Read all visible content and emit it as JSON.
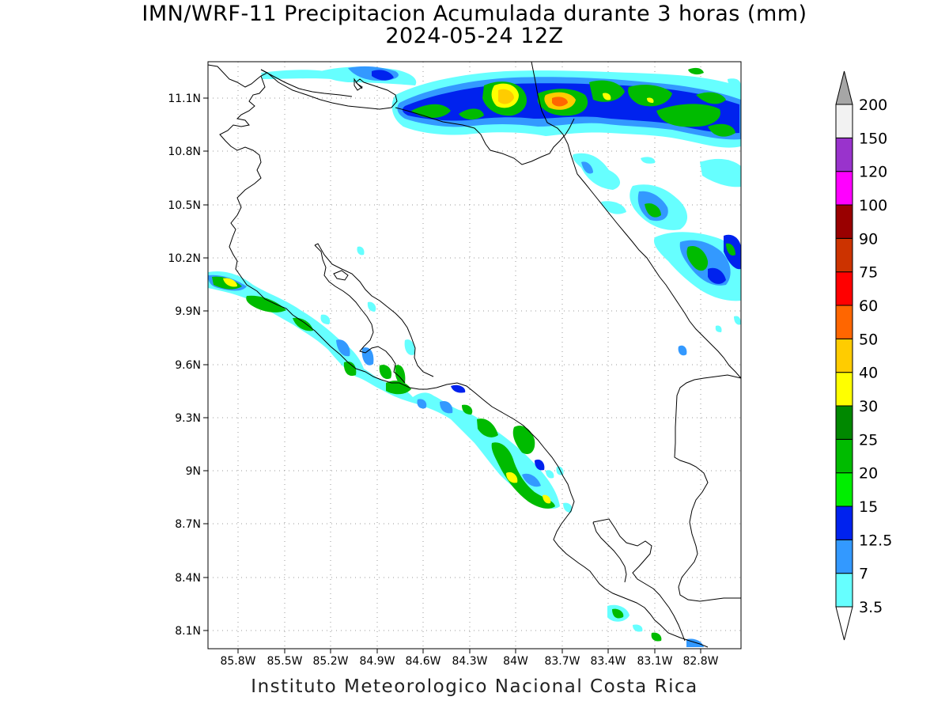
{
  "title": {
    "line1": "IMN/WRF-11 Precipitacion Acumulada durante 3 horas (mm)",
    "line2": "2024-05-24 12Z"
  },
  "footer": "Instituto Meteorologico Nacional Costa Rica",
  "map": {
    "lat_labels": [
      "11.1N",
      "10.8N",
      "10.5N",
      "10.2N",
      "9.9N",
      "9.6N",
      "9.3N",
      "9N",
      "8.7N",
      "8.4N",
      "8.1N"
    ],
    "lon_labels": [
      "85.8W",
      "85.5W",
      "85.2W",
      "84.9W",
      "84.6W",
      "84.3W",
      "84W",
      "83.7W",
      "83.4W",
      "83.1W",
      "82.8W"
    ],
    "gridlines": true,
    "coastline_color": "#000000"
  },
  "colorbar": {
    "labels": [
      "3.5",
      "7",
      "12.5",
      "15",
      "20",
      "25",
      "30",
      "40",
      "50",
      "60",
      "75",
      "90",
      "100",
      "120",
      "150",
      "200"
    ],
    "colors": [
      "#66ffff",
      "#3399ff",
      "#0022ee",
      "#00ee00",
      "#00bb00",
      "#008800",
      "#ffff00",
      "#ffcc00",
      "#ff6600",
      "#ff0000",
      "#cc3300",
      "#990000",
      "#ff00ff",
      "#9933cc",
      "#f2f2f2",
      "#a6a6a6"
    ]
  }
}
